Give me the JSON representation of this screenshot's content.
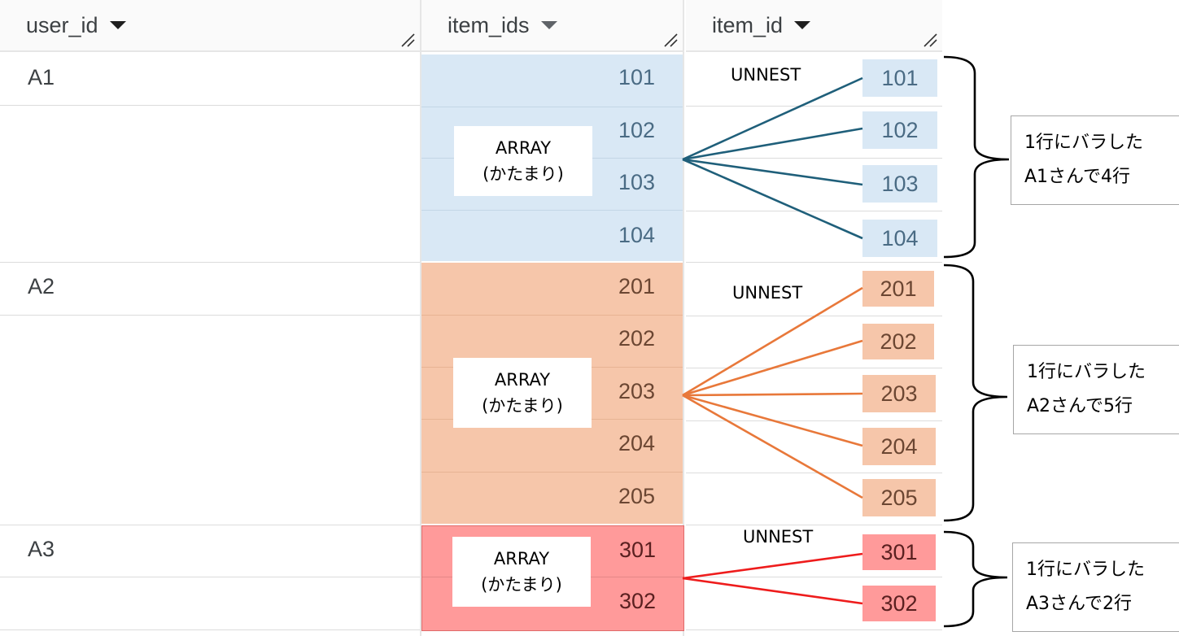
{
  "columns": {
    "user_id": "user_id",
    "item_ids": "item_ids",
    "item_id": "item_id"
  },
  "users": [
    {
      "id": "A1",
      "array_label": [
        "ARRAY",
        "(かたまり)"
      ],
      "items": [
        "101",
        "102",
        "103",
        "104"
      ],
      "unnest": "UNNEST",
      "note": [
        "1行にバラした",
        "A1さんで4行"
      ]
    },
    {
      "id": "A2",
      "array_label": [
        "ARRAY",
        "(かたまり)"
      ],
      "items": [
        "201",
        "202",
        "203",
        "204",
        "205"
      ],
      "unnest": "UNNEST",
      "note": [
        "1行にバラした",
        "A2さんで5行"
      ]
    },
    {
      "id": "A3",
      "array_label": [
        "ARRAY",
        "(かたまり)"
      ],
      "items": [
        "301",
        "302"
      ],
      "unnest": "UNNEST",
      "note": [
        "1行にバラした",
        "A3さんで2行"
      ]
    }
  ],
  "colors": {
    "a1_fill": "#d9e8f5",
    "a1_text": "#4a6b84",
    "a1_line": "#1f5f7a",
    "a2_fill": "#f6c6aa",
    "a2_text": "#6b4632",
    "a2_line": "#e8783a",
    "a3_fill": "#ff9a9a",
    "a3_text": "#5a2020",
    "a3_line": "#ee1c1c"
  }
}
